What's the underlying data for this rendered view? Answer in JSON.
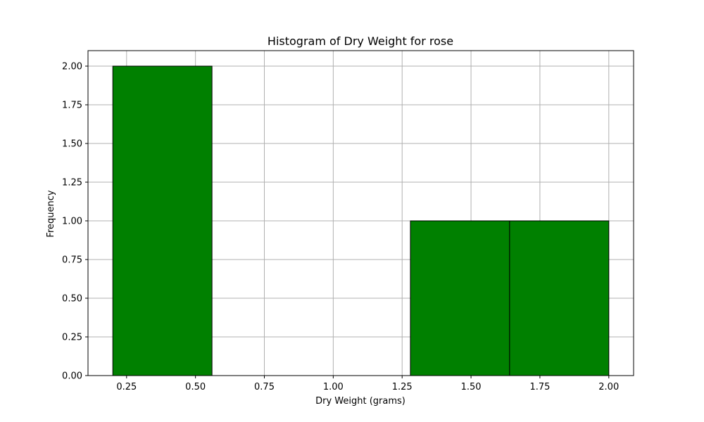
{
  "chart_data": {
    "type": "bar",
    "title": "Histogram of Dry Weight for rose",
    "xlabel": "Dry Weight (grams)",
    "ylabel": "Frequency",
    "bins": [
      {
        "x0": 0.2,
        "x1": 0.56,
        "value": 2
      },
      {
        "x0": 0.56,
        "x1": 0.92,
        "value": 0
      },
      {
        "x0": 0.92,
        "x1": 1.28,
        "value": 0
      },
      {
        "x0": 1.28,
        "x1": 1.64,
        "value": 1
      },
      {
        "x0": 1.64,
        "x1": 2.0,
        "value": 1
      }
    ],
    "xlim": [
      0.11,
      2.09
    ],
    "ylim": [
      0,
      2.1
    ],
    "xticks": [
      "0.25",
      "0.50",
      "0.75",
      "1.00",
      "1.25",
      "1.50",
      "1.75",
      "2.00"
    ],
    "yticks": [
      "0.00",
      "0.25",
      "0.50",
      "0.75",
      "1.00",
      "1.25",
      "1.50",
      "1.75",
      "2.00"
    ],
    "grid": true,
    "bar_color": "#008000",
    "edge_color": "#000000",
    "grid_color": "#b0b0b0"
  }
}
